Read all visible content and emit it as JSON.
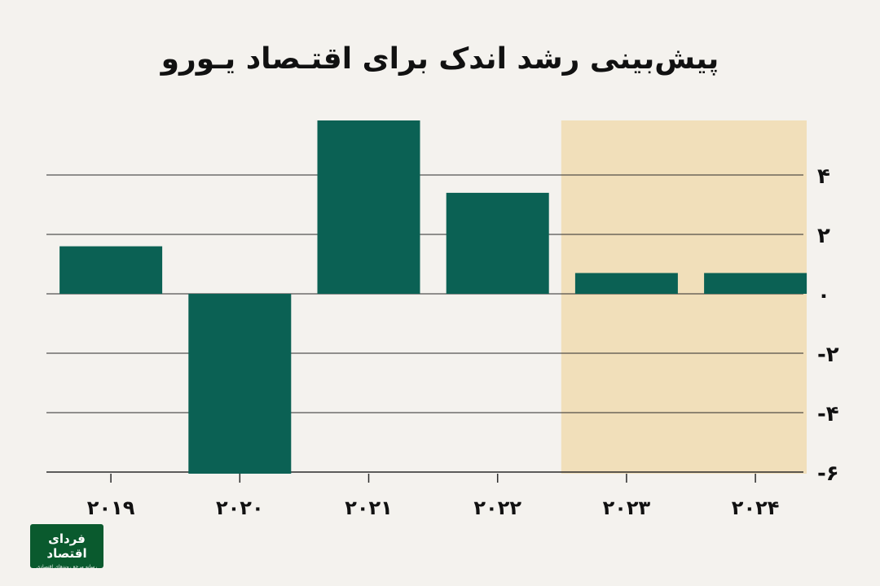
{
  "title": "پیش‌بینی رشد اندک برای اقتـصاد یـورو",
  "logo": {
    "name": "فردای اقتصاد",
    "tagline": "رسانه مرجع روندهای اقتصادی"
  },
  "colors": {
    "bar": "#0b6154",
    "highlight": "#f1dfba",
    "background": "#f4f2ee",
    "grid": "#2a2a2a"
  },
  "chart_data": {
    "type": "bar",
    "title": "پیش‌بینی رشد اندک برای اقتـصاد یـورو",
    "xlabel": "",
    "ylabel": "",
    "categories": [
      "۲۰۱۹",
      "۲۰۲۰",
      "۲۰۲۱",
      "۲۰۲۲",
      "۲۰۲۳",
      "۲۰۲۴"
    ],
    "values": [
      1.6,
      -6.1,
      5.9,
      3.4,
      0.7,
      0.7
    ],
    "ylim": [
      -6,
      5.9
    ],
    "yticks": [
      4,
      2,
      0,
      -2,
      -4,
      -6
    ],
    "ytick_labels": [
      "۴",
      "۲",
      "۰",
      "-۲",
      "-۴",
      "-۶"
    ],
    "y_axis_side": "right",
    "grid": true,
    "highlighted_categories": [
      "۲۰۲۳",
      "۲۰۲۴"
    ]
  }
}
